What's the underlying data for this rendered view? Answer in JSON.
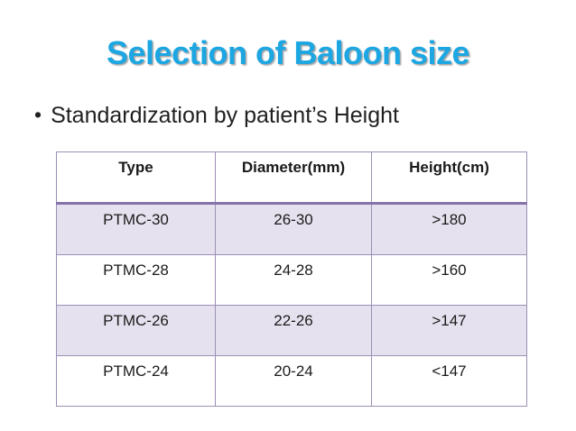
{
  "slide": {
    "title": "Selection of Baloon size",
    "bullet_glyph": "•",
    "bullet": "Standardization by patient’s Height",
    "table": {
      "headers": [
        "Type",
        "Diameter(mm)",
        "Height(cm)"
      ],
      "rows": [
        [
          "PTMC-30",
          "26-30",
          ">180"
        ],
        [
          "PTMC-28",
          "24-28",
          ">160"
        ],
        [
          "PTMC-26",
          "22-26",
          ">147"
        ],
        [
          "PTMC-24",
          "20-24",
          "<147"
        ]
      ]
    },
    "colors": {
      "title_blue": "#1CA6E2",
      "row_alt_lavender": "#E6E1EE",
      "table_border": "#9C8FB5",
      "header_rule": "#8273AB"
    }
  }
}
